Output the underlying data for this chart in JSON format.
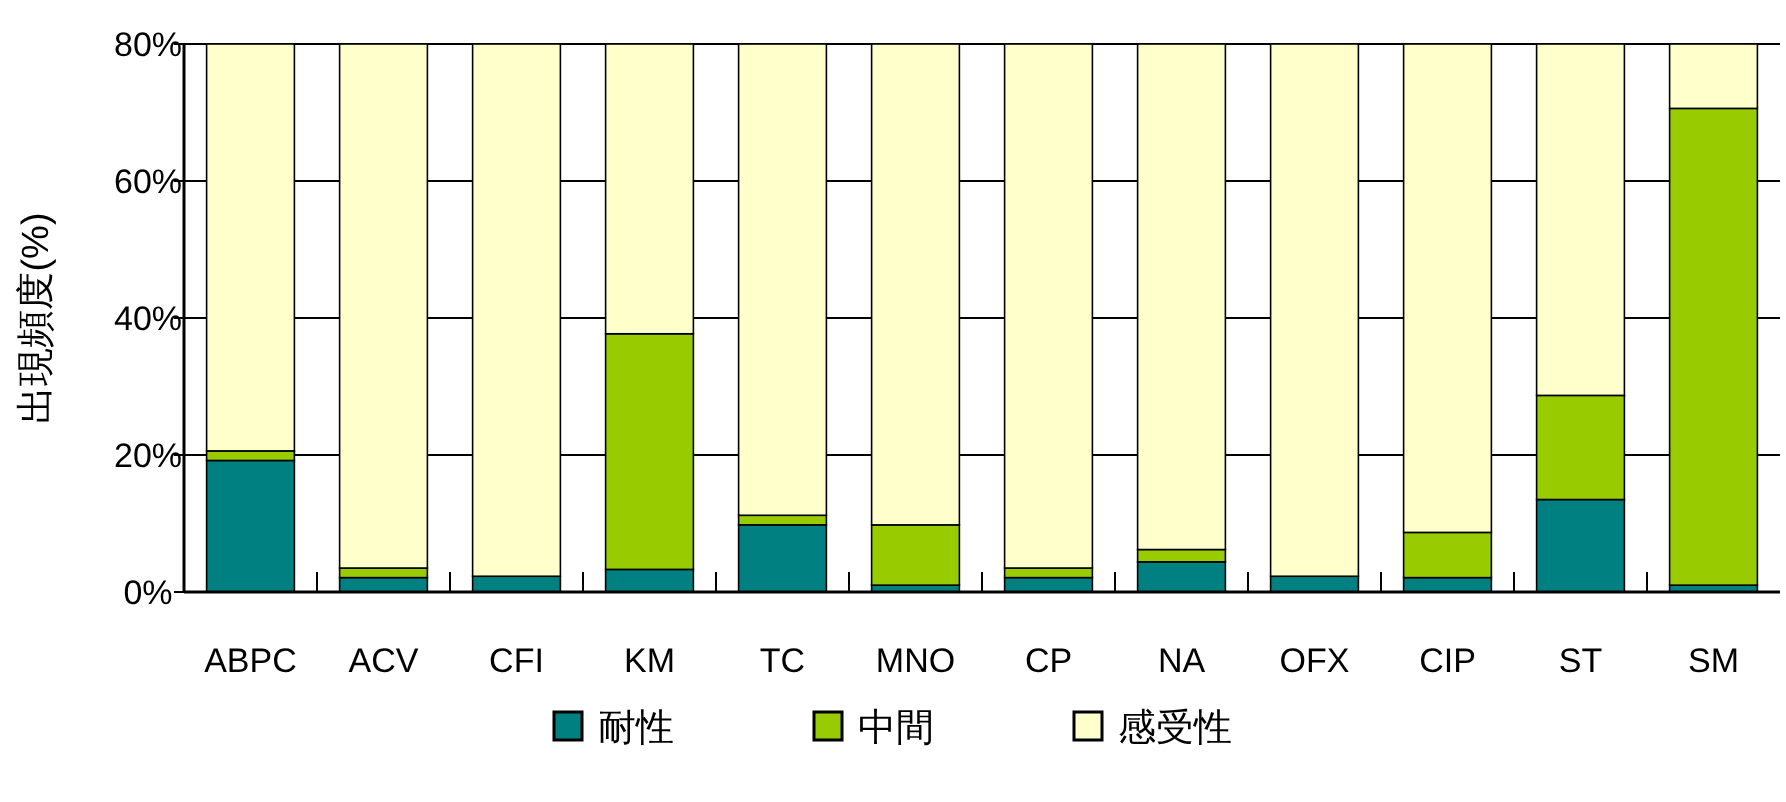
{
  "chart_data": {
    "type": "bar",
    "stacked": true,
    "ylabel": "出現頻度(%)",
    "categories": [
      "ABPC",
      "ACV",
      "CFI",
      "KM",
      "TC",
      "MNO",
      "CP",
      "NA",
      "OFX",
      "CIP",
      "ST",
      "SM"
    ],
    "series": [
      {
        "name": "耐性",
        "color": "#008080",
        "values": [
          19.2,
          2.1,
          2.3,
          3.3,
          9.8,
          1.0,
          2.1,
          4.4,
          2.3,
          2.1,
          13.5,
          1.0
        ]
      },
      {
        "name": "中間",
        "color": "#99cc00",
        "values": [
          1.4,
          1.4,
          0,
          34.4,
          1.4,
          8.8,
          1.4,
          1.8,
          0,
          6.6,
          15.2,
          69.6
        ]
      },
      {
        "name": "感受性",
        "color": "#ffffcc",
        "values": [
          59.4,
          76.5,
          77.7,
          42.3,
          68.8,
          70.2,
          76.5,
          73.8,
          77.7,
          71.3,
          51.3,
          9.4
        ]
      }
    ],
    "ylim": [
      0,
      80
    ],
    "yticks": [
      {
        "value": 0,
        "label": "0%"
      },
      {
        "value": 20,
        "label": "20%"
      },
      {
        "value": 40,
        "label": "40%"
      },
      {
        "value": 60,
        "label": "60%"
      },
      {
        "value": 80,
        "label": "80%"
      }
    ],
    "grid": "y",
    "legend": "bottom"
  }
}
